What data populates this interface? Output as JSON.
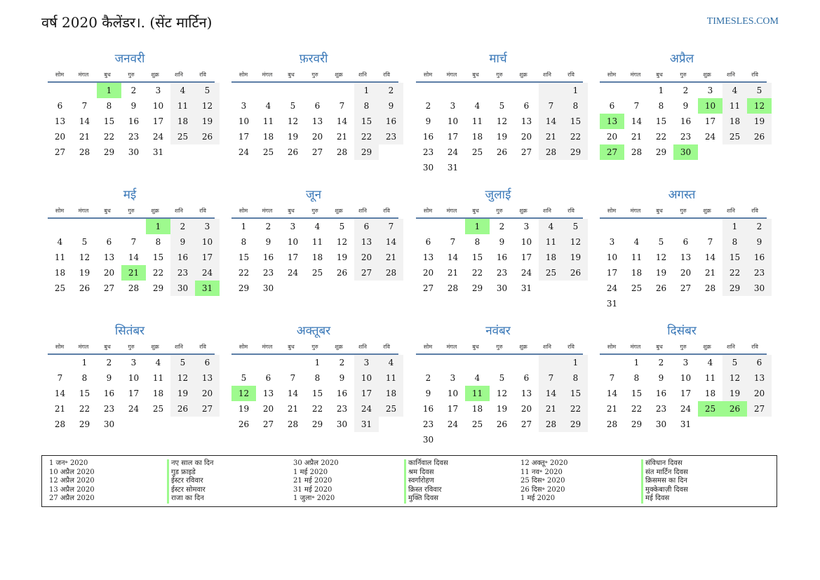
{
  "header": {
    "title": "वर्ष 2020 कैलेंडर।. (सेंट मार्टिन)",
    "site": "TIMESLES.COM"
  },
  "weekdays": [
    "सोम",
    "मंगल",
    "बुध",
    "गुरु",
    "शुक्र",
    "शनि",
    "रवि"
  ],
  "months": [
    {
      "name": "जनवरी",
      "offset": 2,
      "days": 31,
      "holidays": [
        1
      ]
    },
    {
      "name": "फ़रवरी",
      "offset": 5,
      "days": 29,
      "holidays": []
    },
    {
      "name": "मार्च",
      "offset": 6,
      "days": 31,
      "holidays": []
    },
    {
      "name": "अप्रैल",
      "offset": 2,
      "days": 30,
      "holidays": [
        10,
        12,
        13,
        27,
        30
      ]
    },
    {
      "name": "मई",
      "offset": 4,
      "days": 31,
      "holidays": [
        1,
        21,
        31
      ]
    },
    {
      "name": "जून",
      "offset": 0,
      "days": 30,
      "holidays": []
    },
    {
      "name": "जुलाई",
      "offset": 2,
      "days": 31,
      "holidays": [
        1
      ]
    },
    {
      "name": "अगस्त",
      "offset": 5,
      "days": 31,
      "holidays": []
    },
    {
      "name": "सितंबर",
      "offset": 1,
      "days": 30,
      "holidays": []
    },
    {
      "name": "अक्तूबर",
      "offset": 3,
      "days": 31,
      "holidays": [
        12
      ]
    },
    {
      "name": "नवंबर",
      "offset": 6,
      "days": 30,
      "holidays": [
        11
      ]
    },
    {
      "name": "दिसंबर",
      "offset": 1,
      "days": 31,
      "holidays": [
        25,
        26
      ]
    }
  ],
  "legend": [
    [
      {
        "date": "1 जन॰ 2020",
        "name": "नए साल का दिन"
      },
      {
        "date": "10 अप्रैल 2020",
        "name": "गुड फ्राइडे"
      },
      {
        "date": "12 अप्रैल 2020",
        "name": "ईस्टर रविवार"
      },
      {
        "date": "13 अप्रैल 2020",
        "name": "ईस्टर सोमवार"
      },
      {
        "date": "27 अप्रैल 2020",
        "name": "राजा का दिन"
      }
    ],
    [
      {
        "date": "30 अप्रैल 2020",
        "name": "कार्निवाल दिवस"
      },
      {
        "date": "1 मई 2020",
        "name": "श्रम दिवस"
      },
      {
        "date": "21 मई 2020",
        "name": "स्वर्गारोहण"
      },
      {
        "date": "31 मई 2020",
        "name": "क्रिस्त रविवार"
      },
      {
        "date": "1 जुला॰ 2020",
        "name": "मुक्ति दिवस"
      }
    ],
    [
      {
        "date": "12 अक्तू॰ 2020",
        "name": "संविधान दिवस"
      },
      {
        "date": "11 नव॰ 2020",
        "name": "संत मार्टिन दिवस"
      },
      {
        "date": "25 दिस॰ 2020",
        "name": "क्रिसमस का दिन"
      },
      {
        "date": "26 दिस॰ 2020",
        "name": "मुक्केबाज़ी दिवस"
      },
      {
        "date": "1 मई 2020",
        "name": "मई दिवस"
      }
    ]
  ]
}
